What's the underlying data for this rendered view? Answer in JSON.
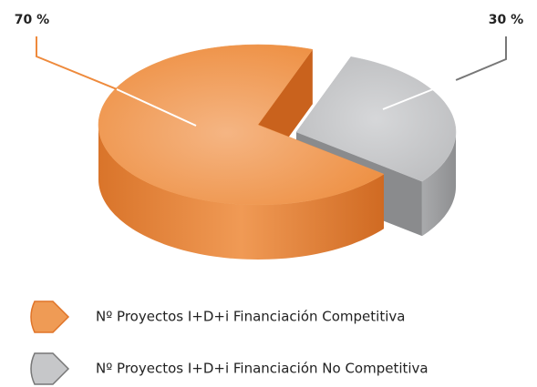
{
  "chart_data": {
    "type": "pie",
    "categories": [
      "Nº Proyectos I+D+i Financiación Competitiva",
      "Nº Proyectos I+D+i Financiación No Competitiva"
    ],
    "values": [
      70,
      30
    ],
    "value_labels": [
      "70 %",
      "30 %"
    ],
    "colors": [
      "#ef9b55",
      "#c6c7c9"
    ],
    "legend": "bottom"
  }
}
